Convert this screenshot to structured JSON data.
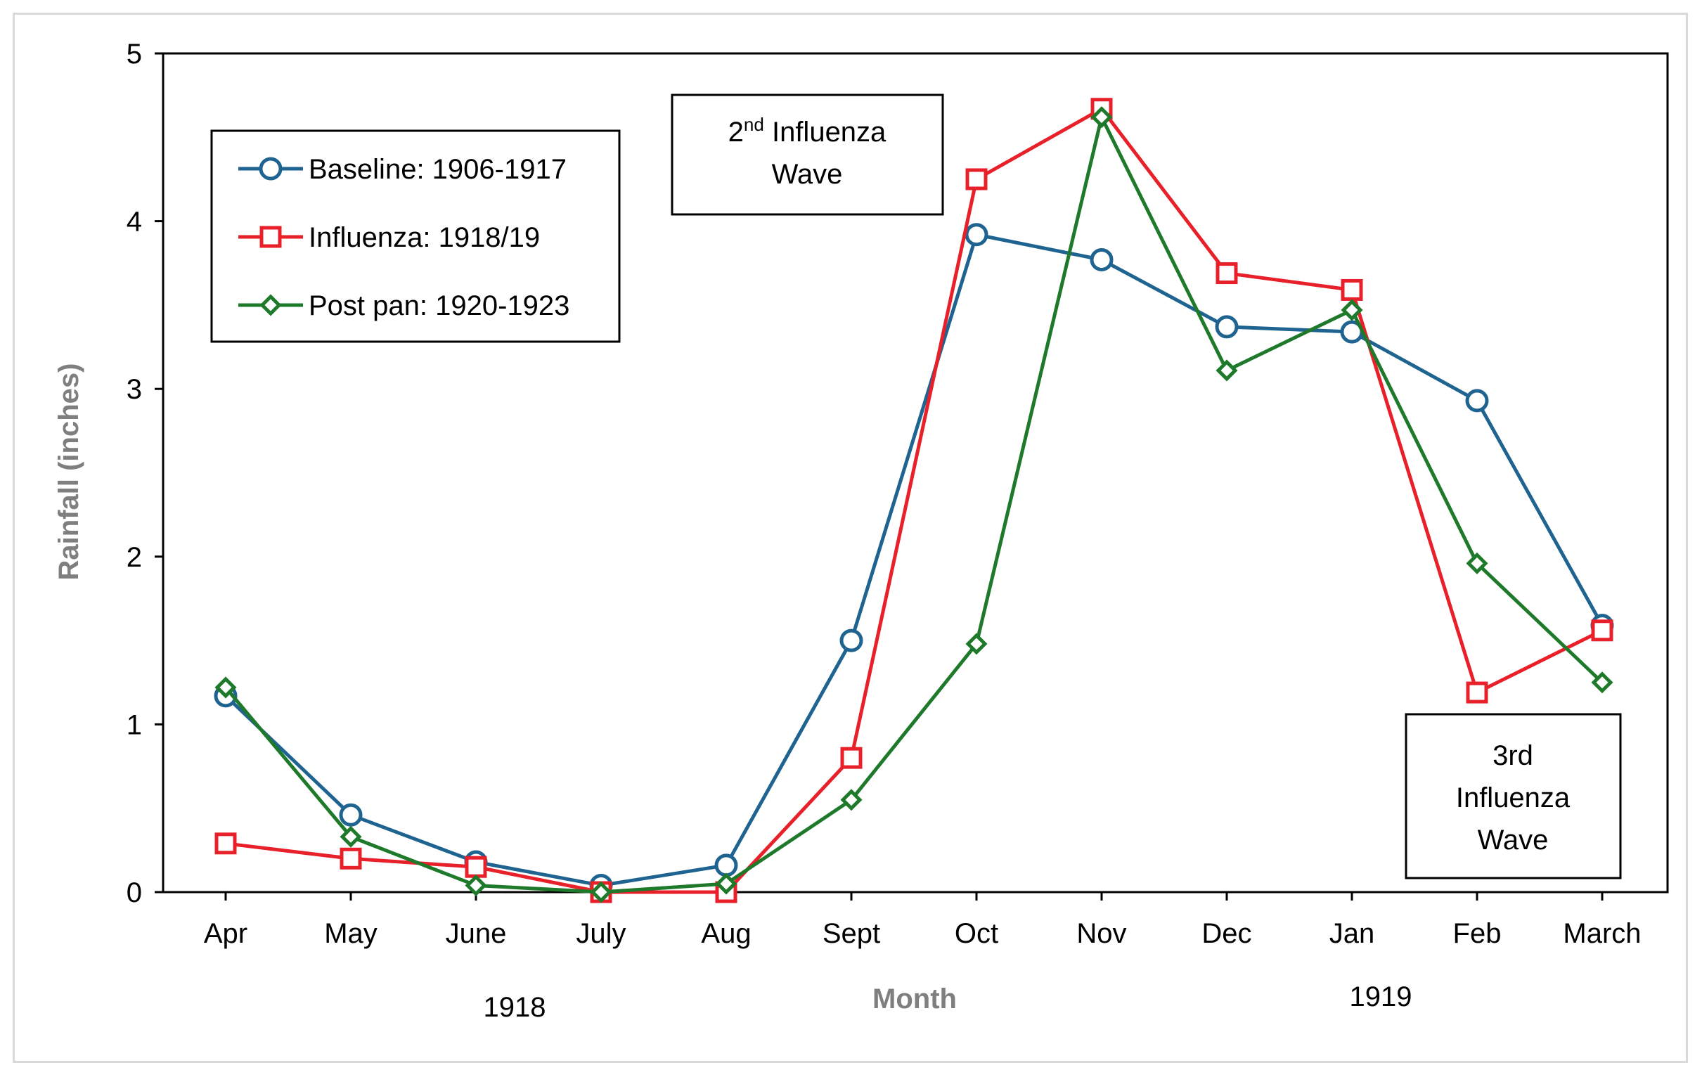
{
  "chart_data": {
    "type": "line",
    "xlabel": "Month",
    "ylabel": "Rainfall (inches)",
    "ylim": [
      0,
      5
    ],
    "yticks": [
      "0",
      "1",
      "2",
      "3",
      "4",
      "5"
    ],
    "categories": [
      "Apr",
      "May",
      "June",
      "July",
      "Aug",
      "Sept",
      "Oct",
      "Nov",
      "Dec",
      "Jan",
      "Feb",
      "March"
    ],
    "year_labels": [
      "1918",
      "1919"
    ],
    "legend_position": "top-left",
    "grid": false,
    "series": [
      {
        "name": "Baseline: 1906-1917",
        "color": "#1f6391",
        "marker": "circle",
        "values": [
          1.17,
          0.46,
          0.18,
          0.04,
          0.16,
          1.5,
          3.92,
          3.77,
          3.37,
          3.34,
          2.93,
          1.59
        ]
      },
      {
        "name": "Influenza: 1918/19",
        "color": "#e8202a",
        "marker": "square",
        "values": [
          0.29,
          0.2,
          0.15,
          0.0,
          0.0,
          0.8,
          4.25,
          4.67,
          3.69,
          3.59,
          1.19,
          1.56
        ]
      },
      {
        "name": "Post pan: 1920-1923",
        "color": "#1e7a2a",
        "marker": "diamond",
        "values": [
          1.22,
          0.33,
          0.04,
          0.0,
          0.05,
          0.55,
          1.48,
          4.62,
          3.11,
          3.47,
          1.96,
          1.25
        ]
      }
    ],
    "annotations": {
      "wave2_line1_base": "2",
      "wave2_line1_sup": "nd",
      "wave2_line1_rest": " Influenza",
      "wave2_line2": "Wave",
      "wave3_line1": "3rd",
      "wave3_line2": "Influenza",
      "wave3_line3": "Wave"
    }
  }
}
